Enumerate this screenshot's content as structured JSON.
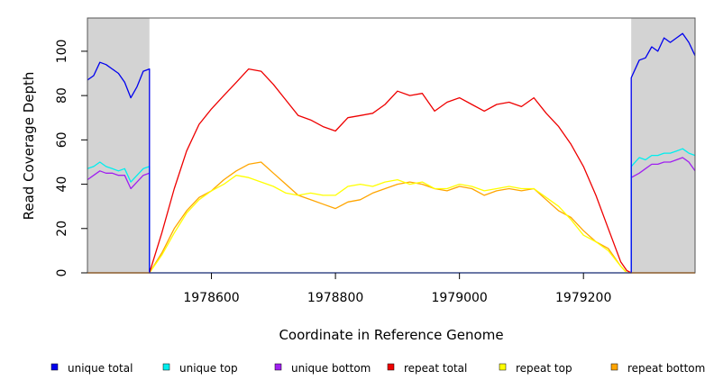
{
  "chart_data": {
    "type": "line",
    "xlabel": "Coordinate in Reference Genome",
    "ylabel": "Read Coverage Depth",
    "xlim": [
      1978400,
      1979380
    ],
    "ylim": [
      0,
      115
    ],
    "xticks": [
      1978600,
      1978800,
      1979000,
      1979200
    ],
    "xtick_labels": [
      "1978600",
      "1978800",
      "1979000",
      "1979200"
    ],
    "yticks": [
      0,
      20,
      40,
      60,
      80,
      100
    ],
    "ytick_labels": [
      "0",
      "20",
      "40",
      "60",
      "80",
      "100"
    ],
    "shaded_regions": [
      [
        1978400,
        1978500
      ],
      [
        1979277,
        1979380
      ]
    ],
    "shade_color": "#d3d3d3",
    "legend_position": "bottom",
    "series": [
      {
        "name": "unique total",
        "color": "#0000ee",
        "x": [
          1978400,
          1978410,
          1978420,
          1978430,
          1978440,
          1978450,
          1978460,
          1978470,
          1978480,
          1978490,
          1978500,
          1978500,
          1979277,
          1979277,
          1979290,
          1979300,
          1979310,
          1979320,
          1979330,
          1979340,
          1979350,
          1979360,
          1979370,
          1979380
        ],
        "y": [
          87,
          89,
          95,
          94,
          92,
          90,
          86,
          79,
          84,
          91,
          92,
          0,
          0,
          88,
          96,
          97,
          102,
          100,
          106,
          104,
          106,
          108,
          104,
          98
        ]
      },
      {
        "name": "unique top",
        "color": "#00eeee",
        "x": [
          1978400,
          1978410,
          1978420,
          1978430,
          1978440,
          1978450,
          1978460,
          1978470,
          1978480,
          1978490,
          1978500,
          1978500,
          1979277,
          1979277,
          1979290,
          1979300,
          1979310,
          1979320,
          1979330,
          1979340,
          1979350,
          1979360,
          1979370,
          1979380
        ],
        "y": [
          47,
          48,
          50,
          48,
          47,
          46,
          47,
          41,
          44,
          47,
          48,
          0,
          0,
          48,
          52,
          51,
          53,
          53,
          54,
          54,
          55,
          56,
          54,
          53
        ]
      },
      {
        "name": "unique bottom",
        "color": "#a020f0",
        "x": [
          1978400,
          1978410,
          1978420,
          1978430,
          1978440,
          1978450,
          1978460,
          1978470,
          1978480,
          1978490,
          1978500,
          1978500,
          1979277,
          1979277,
          1979290,
          1979300,
          1979310,
          1979320,
          1979330,
          1979340,
          1979350,
          1979360,
          1979370,
          1979380
        ],
        "y": [
          42,
          44,
          46,
          45,
          45,
          44,
          44,
          38,
          41,
          44,
          45,
          0,
          0,
          43,
          45,
          47,
          49,
          49,
          50,
          50,
          51,
          52,
          50,
          46
        ]
      },
      {
        "name": "repeat total",
        "color": "#ee0000",
        "x": [
          1978400,
          1978500,
          1978520,
          1978540,
          1978560,
          1978580,
          1978600,
          1978620,
          1978640,
          1978660,
          1978680,
          1978700,
          1978720,
          1978740,
          1978760,
          1978780,
          1978800,
          1978820,
          1978840,
          1978860,
          1978880,
          1978900,
          1978920,
          1978940,
          1978960,
          1978980,
          1979000,
          1979020,
          1979040,
          1979060,
          1979080,
          1979100,
          1979120,
          1979140,
          1979160,
          1979180,
          1979200,
          1979220,
          1979240,
          1979260,
          1979270,
          1979277,
          1979380
        ],
        "y": [
          0,
          0,
          18,
          38,
          55,
          67,
          74,
          80,
          86,
          92,
          91,
          85,
          78,
          71,
          69,
          66,
          64,
          70,
          71,
          72,
          76,
          82,
          80,
          81,
          73,
          77,
          79,
          76,
          73,
          76,
          77,
          75,
          79,
          72,
          66,
          58,
          48,
          35,
          20,
          5,
          1,
          0,
          0
        ]
      },
      {
        "name": "repeat top",
        "color": "#ffff00",
        "x": [
          1978400,
          1978500,
          1978520,
          1978540,
          1978560,
          1978580,
          1978600,
          1978620,
          1978640,
          1978660,
          1978680,
          1978700,
          1978720,
          1978740,
          1978760,
          1978780,
          1978800,
          1978820,
          1978840,
          1978860,
          1978880,
          1978900,
          1978920,
          1978940,
          1978960,
          1978980,
          1979000,
          1979020,
          1979040,
          1979060,
          1979080,
          1979100,
          1979120,
          1979140,
          1979160,
          1979180,
          1979200,
          1979220,
          1979240,
          1979260,
          1979270,
          1979277,
          1979380
        ],
        "y": [
          0,
          0,
          8,
          18,
          27,
          33,
          37,
          40,
          44,
          43,
          41,
          39,
          36,
          35,
          36,
          35,
          35,
          39,
          40,
          39,
          41,
          42,
          40,
          41,
          38,
          38,
          40,
          39,
          37,
          38,
          39,
          38,
          38,
          34,
          30,
          24,
          17,
          14,
          10,
          3,
          0,
          0,
          0
        ]
      },
      {
        "name": "repeat bottom",
        "color": "#ffa500",
        "x": [
          1978400,
          1978500,
          1978520,
          1978540,
          1978560,
          1978580,
          1978600,
          1978620,
          1978640,
          1978660,
          1978680,
          1978700,
          1978720,
          1978740,
          1978760,
          1978780,
          1978800,
          1978820,
          1978840,
          1978860,
          1978880,
          1978900,
          1978920,
          1978940,
          1978960,
          1978980,
          1979000,
          1979020,
          1979040,
          1979060,
          1979080,
          1979100,
          1979120,
          1979140,
          1979160,
          1979180,
          1979200,
          1979220,
          1979240,
          1979260,
          1979270,
          1979277,
          1979380
        ],
        "y": [
          0,
          0,
          9,
          20,
          28,
          34,
          37,
          42,
          46,
          49,
          50,
          45,
          40,
          35,
          33,
          31,
          29,
          32,
          33,
          36,
          38,
          40,
          41,
          40,
          38,
          37,
          39,
          38,
          35,
          37,
          38,
          37,
          38,
          33,
          28,
          25,
          19,
          14,
          11,
          3,
          0,
          0,
          0
        ]
      }
    ]
  }
}
